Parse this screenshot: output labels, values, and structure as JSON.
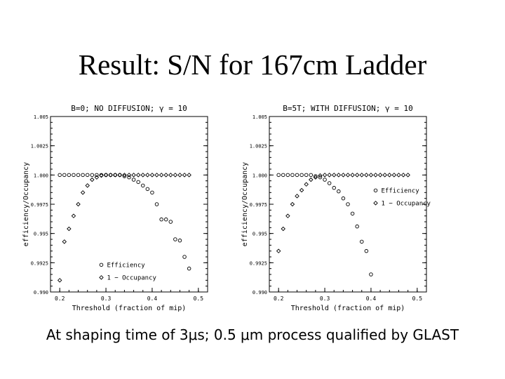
{
  "slide": {
    "title": "Result: S/N for 167cm Ladder",
    "caption": "At shaping time of 3μs; 0.5 μm process qualified by GLAST"
  },
  "chart_data": [
    {
      "type": "scatter",
      "title": "B=0; NO DIFFUSION; γ = 10",
      "xlabel": "Threshold (fraction of mip)",
      "ylabel": "efficiency/Occupancy",
      "xlim": [
        0.18,
        0.52
      ],
      "ylim": [
        0.99,
        1.005
      ],
      "x_ticks": [
        "0.2",
        "0.3",
        "0.4",
        "0.5"
      ],
      "y_ticks": [
        "0.990",
        "0.9925",
        "0.995",
        "0.9975",
        "1.000",
        "1.0025",
        "1.005"
      ],
      "grid": false,
      "legend": "lower-left",
      "series": [
        {
          "name": "Efficiency",
          "marker": "circle",
          "x": [
            0.2,
            0.21,
            0.22,
            0.23,
            0.24,
            0.25,
            0.26,
            0.27,
            0.28,
            0.29,
            0.3,
            0.31,
            0.32,
            0.33,
            0.34,
            0.35,
            0.36,
            0.37,
            0.38,
            0.39,
            0.4,
            0.41,
            0.42,
            0.43,
            0.44,
            0.45,
            0.46,
            0.47,
            0.48
          ],
          "y": [
            1.0,
            1.0,
            1.0,
            1.0,
            1.0,
            1.0,
            1.0,
            1.0,
            1.0,
            1.0,
            1.0,
            1.0,
            1.0,
            1.0,
            0.9999,
            0.9998,
            0.9996,
            0.9994,
            0.9991,
            0.9988,
            0.9985,
            0.9975,
            0.9962,
            0.9962,
            0.996,
            0.9945,
            0.9944,
            0.993,
            0.992
          ]
        },
        {
          "name": "1 − Occupancy",
          "marker": "diamond",
          "x": [
            0.2,
            0.21,
            0.22,
            0.23,
            0.24,
            0.25,
            0.26,
            0.27,
            0.28,
            0.29,
            0.3,
            0.31,
            0.32,
            0.33,
            0.34,
            0.35,
            0.36,
            0.37,
            0.38,
            0.39,
            0.4,
            0.41,
            0.42,
            0.43,
            0.44,
            0.45,
            0.46,
            0.47,
            0.48
          ],
          "y": [
            0.991,
            0.9943,
            0.9954,
            0.9965,
            0.9975,
            0.9985,
            0.9991,
            0.9996,
            0.9998,
            0.99995,
            1.0,
            1.0,
            1.0,
            1.0,
            1.0,
            1.0,
            1.0,
            1.0,
            1.0,
            1.0,
            1.0,
            1.0,
            1.0,
            1.0,
            1.0,
            1.0,
            1.0,
            1.0,
            1.0
          ]
        }
      ]
    },
    {
      "type": "scatter",
      "title": "B=5T; WITH DIFFUSION; γ = 10",
      "xlabel": "Threshold (fraction of mip)",
      "ylabel": "efficiency/Occupancy",
      "xlim": [
        0.18,
        0.52
      ],
      "ylim": [
        0.99,
        1.005
      ],
      "x_ticks": [
        "0.2",
        "0.3",
        "0.4",
        "0.5"
      ],
      "y_ticks": [
        "0.990",
        "0.9925",
        "0.995",
        "0.9975",
        "1.000",
        "1.0025",
        "1.005"
      ],
      "grid": false,
      "legend": "top-right",
      "series": [
        {
          "name": "Efficiency",
          "marker": "circle",
          "x": [
            0.2,
            0.21,
            0.22,
            0.23,
            0.24,
            0.25,
            0.26,
            0.27,
            0.28,
            0.29,
            0.3,
            0.31,
            0.32,
            0.33,
            0.34,
            0.35,
            0.36,
            0.37,
            0.38,
            0.39,
            0.4
          ],
          "y": [
            1.0,
            1.0,
            1.0,
            1.0,
            1.0,
            1.0,
            1.0,
            1.0,
            0.9999,
            0.9998,
            0.9996,
            0.9993,
            0.9989,
            0.9986,
            0.998,
            0.9975,
            0.9967,
            0.9956,
            0.9943,
            0.9935,
            0.9915
          ]
        },
        {
          "name": "1 − Occupancy",
          "marker": "diamond",
          "x": [
            0.2,
            0.21,
            0.22,
            0.23,
            0.24,
            0.25,
            0.26,
            0.27,
            0.28,
            0.29,
            0.3,
            0.31,
            0.32,
            0.33,
            0.34,
            0.35,
            0.36,
            0.37,
            0.38,
            0.39,
            0.4,
            0.41,
            0.42,
            0.43,
            0.44,
            0.45,
            0.46,
            0.47,
            0.48
          ],
          "y": [
            0.9935,
            0.9954,
            0.9965,
            0.9975,
            0.9982,
            0.9987,
            0.9992,
            0.9996,
            0.9998,
            0.99995,
            1.0,
            1.0,
            1.0,
            1.0,
            1.0,
            1.0,
            1.0,
            1.0,
            1.0,
            1.0,
            1.0,
            1.0,
            1.0,
            1.0,
            1.0,
            1.0,
            1.0,
            1.0,
            1.0
          ]
        }
      ]
    }
  ]
}
